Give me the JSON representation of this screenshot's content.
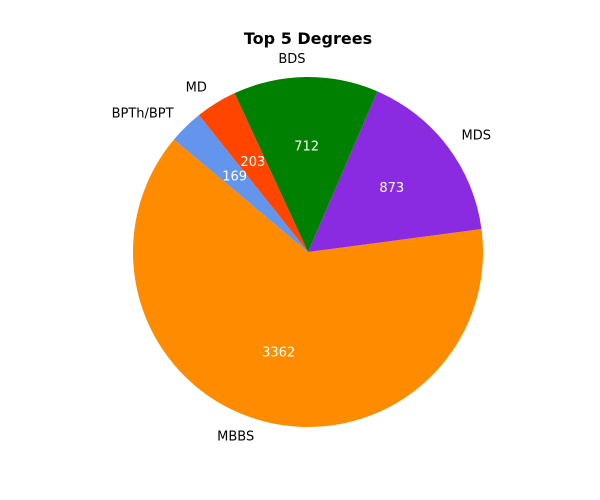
{
  "chart_data": {
    "type": "pie",
    "title": "Top 5 Degrees",
    "start_angle_deg": 140,
    "direction": "counterclockwise",
    "slices": [
      {
        "label": "MBBS",
        "value": 3362,
        "color": "#ff8c00"
      },
      {
        "label": "MDS",
        "value": 873,
        "color": "#8a2be2"
      },
      {
        "label": "BDS",
        "value": 712,
        "color": "#008000"
      },
      {
        "label": "MD",
        "value": 203,
        "color": "#ff4500"
      },
      {
        "label": "BPTh/BPT",
        "value": 169,
        "color": "#6495ed"
      }
    ]
  }
}
